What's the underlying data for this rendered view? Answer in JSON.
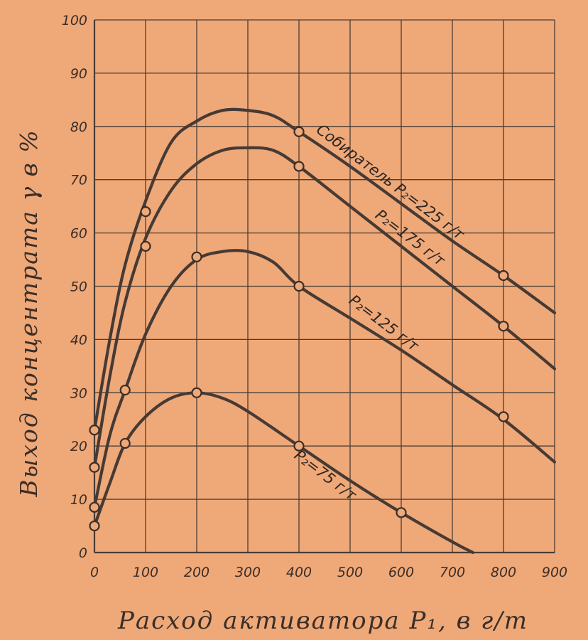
{
  "chart_data": {
    "type": "line",
    "xlabel": "Расход активатора Р₁, в г/т",
    "ylabel": "Выход концентрата γ в %",
    "xlim": [
      0,
      900
    ],
    "ylim": [
      0,
      100
    ],
    "x_ticks": [
      "0",
      "100",
      "200",
      "300",
      "400",
      "500",
      "600",
      "700",
      "800",
      "900"
    ],
    "y_ticks": [
      "0",
      "10",
      "20",
      "30",
      "40",
      "50",
      "60",
      "70",
      "80",
      "90",
      "100"
    ],
    "grid": true,
    "series": [
      {
        "name": "Собиратель Р₂=225 г/т",
        "points": [
          [
            0,
            23
          ],
          [
            100,
            64
          ],
          [
            400,
            79
          ],
          [
            800,
            52
          ]
        ],
        "curve": [
          [
            0,
            23
          ],
          [
            30,
            40
          ],
          [
            60,
            54
          ],
          [
            100,
            66
          ],
          [
            150,
            77
          ],
          [
            200,
            81
          ],
          [
            250,
            83
          ],
          [
            300,
            83
          ],
          [
            350,
            82
          ],
          [
            400,
            79
          ],
          [
            500,
            72.5
          ],
          [
            600,
            65.5
          ],
          [
            700,
            58.5
          ],
          [
            800,
            52
          ],
          [
            900,
            45
          ]
        ]
      },
      {
        "name": "Р₂=175 г/т",
        "points": [
          [
            0,
            16
          ],
          [
            100,
            57.5
          ],
          [
            400,
            72.5
          ],
          [
            800,
            42.5
          ]
        ],
        "curve": [
          [
            0,
            16
          ],
          [
            30,
            33
          ],
          [
            60,
            47
          ],
          [
            100,
            59
          ],
          [
            150,
            68
          ],
          [
            200,
            73
          ],
          [
            250,
            75.5
          ],
          [
            300,
            76
          ],
          [
            350,
            75.5
          ],
          [
            400,
            72.5
          ],
          [
            500,
            65
          ],
          [
            600,
            57.5
          ],
          [
            700,
            50
          ],
          [
            800,
            42.5
          ],
          [
            900,
            34.5
          ]
        ]
      },
      {
        "name": "Р₂=125 г/т",
        "points": [
          [
            0,
            8.5
          ],
          [
            60,
            30.5
          ],
          [
            200,
            55.5
          ],
          [
            400,
            50
          ],
          [
            800,
            25.5
          ]
        ],
        "curve": [
          [
            0,
            8.5
          ],
          [
            30,
            22
          ],
          [
            60,
            30.5
          ],
          [
            100,
            41
          ],
          [
            150,
            50
          ],
          [
            200,
            55
          ],
          [
            250,
            56.5
          ],
          [
            300,
            56.5
          ],
          [
            350,
            54.5
          ],
          [
            400,
            50
          ],
          [
            500,
            44
          ],
          [
            600,
            38
          ],
          [
            700,
            31.5
          ],
          [
            800,
            25
          ],
          [
            900,
            17
          ]
        ]
      },
      {
        "name": "Р₂=75 г/т",
        "points": [
          [
            0,
            5
          ],
          [
            60,
            20.5
          ],
          [
            200,
            30
          ],
          [
            400,
            20
          ],
          [
            600,
            7.5
          ]
        ],
        "curve": [
          [
            0,
            5
          ],
          [
            30,
            13
          ],
          [
            60,
            20.5
          ],
          [
            100,
            25.5
          ],
          [
            150,
            29
          ],
          [
            200,
            30
          ],
          [
            250,
            29
          ],
          [
            300,
            26.5
          ],
          [
            400,
            20
          ],
          [
            500,
            13.5
          ],
          [
            600,
            7.5
          ],
          [
            700,
            2
          ],
          [
            740,
            0
          ]
        ]
      }
    ]
  }
}
